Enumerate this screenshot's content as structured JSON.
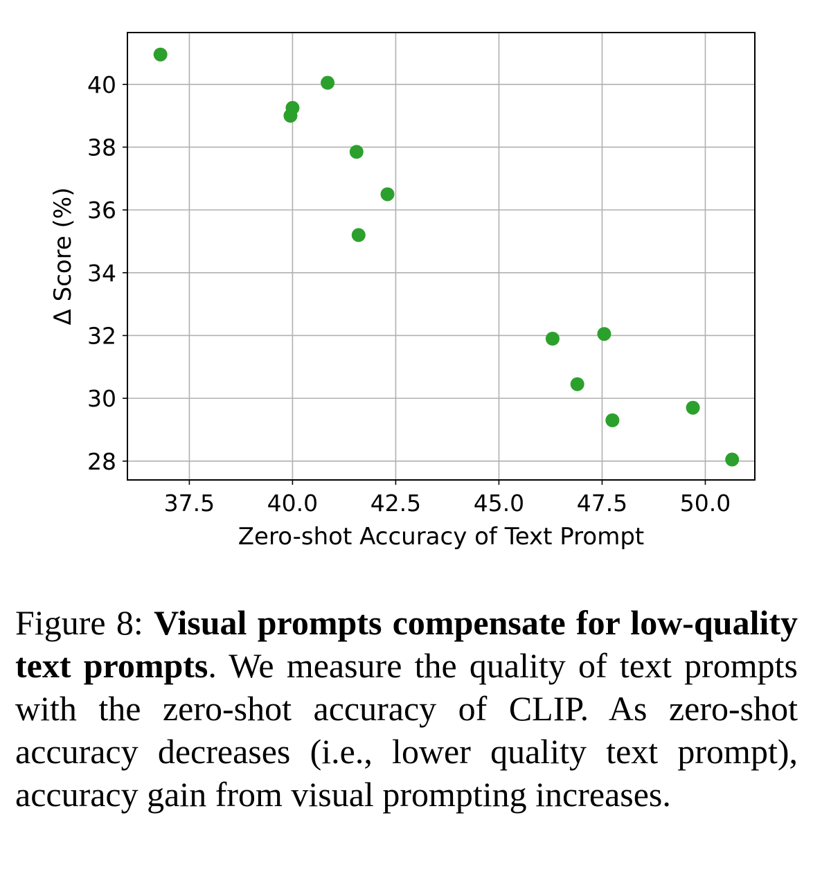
{
  "chart_data": {
    "type": "scatter",
    "title": "",
    "xlabel": "Zero-shot Accuracy of Text Prompt",
    "ylabel": "Δ Score (%)",
    "xlim": [
      36.0,
      51.2
    ],
    "ylim": [
      27.4,
      41.65
    ],
    "xticks": [
      "37.5",
      "40.0",
      "42.5",
      "45.0",
      "47.5",
      "50.0"
    ],
    "yticks": [
      "28",
      "30",
      "32",
      "34",
      "36",
      "38",
      "40"
    ],
    "grid": true,
    "marker_color": "#2ca02c",
    "points": [
      {
        "x": 36.8,
        "y": 40.95
      },
      {
        "x": 40.85,
        "y": 40.05
      },
      {
        "x": 40.0,
        "y": 39.25
      },
      {
        "x": 39.95,
        "y": 39.0
      },
      {
        "x": 41.55,
        "y": 37.85
      },
      {
        "x": 42.3,
        "y": 36.5
      },
      {
        "x": 41.6,
        "y": 35.2
      },
      {
        "x": 46.3,
        "y": 31.9
      },
      {
        "x": 47.55,
        "y": 32.05
      },
      {
        "x": 46.9,
        "y": 30.45
      },
      {
        "x": 47.75,
        "y": 29.3
      },
      {
        "x": 49.7,
        "y": 29.7
      },
      {
        "x": 50.65,
        "y": 28.05
      }
    ]
  },
  "caption": {
    "prefix": "Figure 8: ",
    "bold": "Visual prompts compensate for low-quality text prompts",
    "rest": ". We measure the quality of text prompts with the zero-shot accuracy of CLIP. As zero-shot accuracy decreases (i.e., lower quality text prompt), accuracy gain from visual prompting increases."
  }
}
